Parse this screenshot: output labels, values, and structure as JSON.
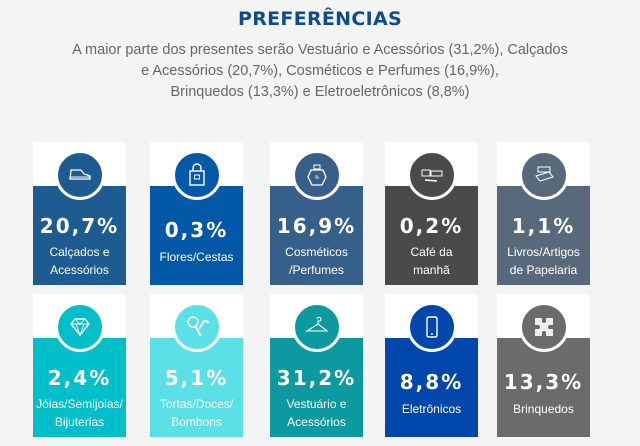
{
  "header": {
    "title": "PREFERÊNCIAS",
    "intro_lines": [
      "A maior parte dos presentes serão Vestuário e Acessórios (31,2%), Calçados",
      "e Acessórios (20,7%), Cosméticos e Perfumes (16,9%),",
      "Brinquedos (13,3%) e Eletroeletrônicos (8,8%)"
    ]
  },
  "cards": [
    {
      "pct": "20,7%",
      "line1": "Calçados e",
      "line2": "Acessórios",
      "icon": "shoe-icon",
      "color": "#1d5b91"
    },
    {
      "pct": "0,3%",
      "line1": "Flores/Cestas",
      "line2": "",
      "icon": "gift-bag-icon",
      "color": "#0458a8"
    },
    {
      "pct": "16,9%",
      "line1": "Cosméticos",
      "line2": "/Perfumes",
      "icon": "perfume-icon",
      "color": "#365f8a"
    },
    {
      "pct": "0,2%",
      "line1": "Café da",
      "line2": "manhã",
      "icon": "breakfast-icon",
      "color": "#4a4a4a"
    },
    {
      "pct": "1,1%",
      "line1": "Livros/Artigos",
      "line2": "de Papelaria",
      "icon": "books-icon",
      "color": "#59697c"
    },
    {
      "pct": "2,4%",
      "line1": "Jóias/Semijoias/",
      "line2": "Bijuterias",
      "icon": "diamond-icon",
      "color": "#00bfc8"
    },
    {
      "pct": "5,1%",
      "line1": "Tortas/Doces/",
      "line2": "Bombons",
      "icon": "candy-icon",
      "color": "#5ce0e8"
    },
    {
      "pct": "31,2%",
      "line1": "Vestuário e",
      "line2": "Acessórios",
      "icon": "hanger-icon",
      "color": "#0c9aa0"
    },
    {
      "pct": "8,8%",
      "line1": "Eletrônicos",
      "line2": "",
      "icon": "smartphone-icon",
      "color": "#0047ab"
    },
    {
      "pct": "13,3%",
      "line1": "Brinquedos",
      "line2": "",
      "icon": "puzzle-icon",
      "color": "#6b6b6b"
    }
  ]
}
